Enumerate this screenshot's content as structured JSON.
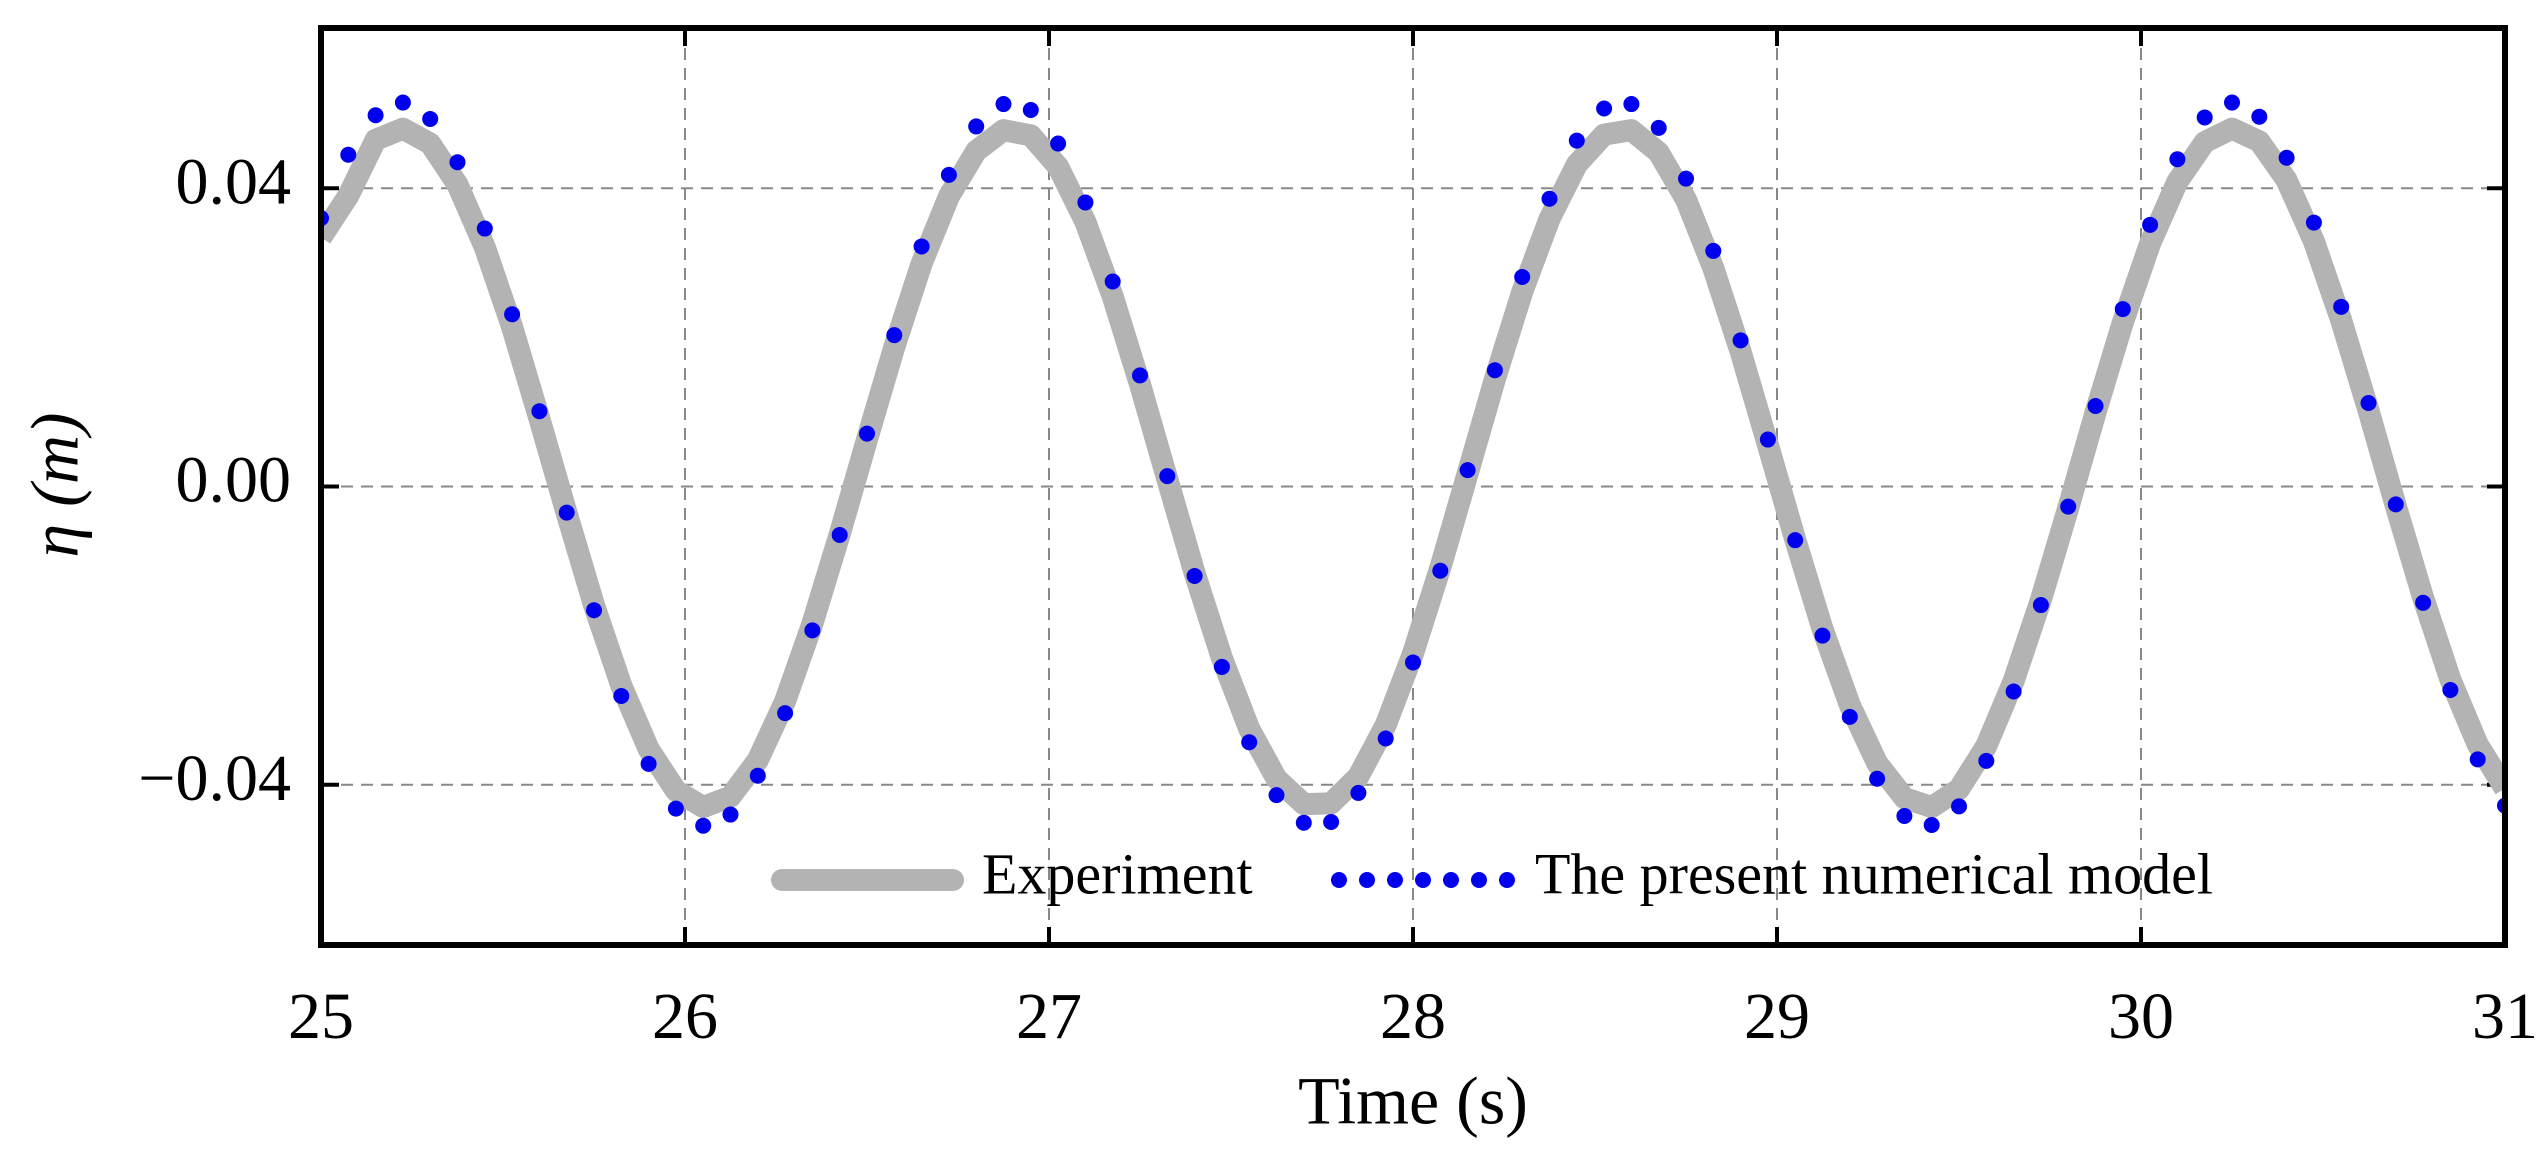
{
  "chart_data": {
    "type": "line",
    "xlabel": "Time (s)",
    "ylabel": "η (m)",
    "x": [
      25,
      25.075,
      25.15,
      25.225,
      25.3,
      25.375,
      25.45,
      25.525,
      25.6,
      25.675,
      25.75,
      25.825,
      25.9,
      25.975,
      26.05,
      26.125,
      26.2,
      26.275,
      26.35,
      26.425,
      26.5,
      26.575,
      26.65,
      26.725,
      26.8,
      26.875,
      26.95,
      27.025,
      27.1,
      27.175,
      27.25,
      27.325,
      27.4,
      27.475,
      27.55,
      27.625,
      27.7,
      27.775,
      27.85,
      27.925,
      28,
      28.075,
      28.15,
      28.225,
      28.3,
      28.375,
      28.45,
      28.525,
      28.6,
      28.675,
      28.75,
      28.825,
      28.9,
      28.975,
      29.05,
      29.125,
      29.2,
      29.275,
      29.35,
      29.425,
      29.5,
      29.575,
      29.65,
      29.725,
      29.8,
      29.875,
      29.95,
      30.025,
      30.1,
      30.175,
      30.25,
      30.325,
      30.4,
      30.475,
      30.55,
      30.625,
      30.7,
      30.775,
      30.85,
      30.925,
      31
    ],
    "series": [
      {
        "name": "Experiment",
        "color": "#b3b3b3",
        "style": "line",
        "values": [
          0.0334,
          0.039,
          0.0465,
          0.048,
          0.046,
          0.0405,
          0.0321,
          0.0214,
          0.0091,
          -0.0036,
          -0.0159,
          -0.0267,
          -0.0352,
          -0.0408,
          -0.043,
          -0.0416,
          -0.0367,
          -0.0288,
          -0.0184,
          -0.0064,
          0.0063,
          0.0187,
          0.0299,
          0.0389,
          0.045,
          0.0478,
          0.0471,
          0.0429,
          0.0355,
          0.0255,
          0.0137,
          0.001,
          -0.0116,
          -0.023,
          -0.0325,
          -0.0392,
          -0.0426,
          -0.0425,
          -0.0389,
          -0.032,
          -0.0224,
          -0.0109,
          0.0017,
          0.0144,
          0.0261,
          0.0359,
          0.0432,
          0.0472,
          0.0478,
          0.0448,
          0.0385,
          0.0293,
          0.0181,
          0.0056,
          -0.0071,
          -0.0191,
          -0.0293,
          -0.0371,
          -0.0418,
          -0.043,
          -0.0406,
          -0.0348,
          -0.0261,
          -0.0152,
          -0.0029,
          0.0099,
          0.022,
          0.0326,
          0.0409,
          0.0462,
          0.048,
          0.0463,
          0.0411,
          0.0329,
          0.0223,
          0.0102,
          -0.0026,
          -0.0149,
          -0.0259,
          -0.0346,
          -0.0405
        ]
      },
      {
        "name": "The present numerical model",
        "color": "#0000ee",
        "style": "dots",
        "values": [
          0.036,
          0.0445,
          0.0498,
          0.0515,
          0.0493,
          0.0435,
          0.0346,
          0.0231,
          0.0101,
          -0.0035,
          -0.0166,
          -0.0281,
          -0.0372,
          -0.0432,
          -0.0455,
          -0.044,
          -0.0388,
          -0.0304,
          -0.0193,
          -0.0065,
          0.0071,
          0.0203,
          0.0322,
          0.0418,
          0.0483,
          0.0513,
          0.0505,
          0.046,
          0.0381,
          0.0275,
          0.0149,
          0.0014,
          -0.012,
          -0.0242,
          -0.0343,
          -0.0414,
          -0.0451,
          -0.045,
          -0.0411,
          -0.0338,
          -0.0236,
          -0.0113,
          0.0022,
          0.0156,
          0.0281,
          0.0386,
          0.0464,
          0.0507,
          0.0513,
          0.0481,
          0.0413,
          0.0316,
          0.0196,
          0.0063,
          -0.0072,
          -0.02,
          -0.0309,
          -0.0392,
          -0.0442,
          -0.0454,
          -0.0429,
          -0.0368,
          -0.0275,
          -0.0159,
          -0.0027,
          0.0108,
          0.0238,
          0.0351,
          0.0439,
          0.0495,
          0.0515,
          0.0496,
          0.0441,
          0.0354,
          0.0241,
          0.0112,
          -0.0024,
          -0.0156,
          -0.0273,
          -0.0366,
          -0.0428
        ]
      }
    ],
    "xlim": [
      25,
      31
    ],
    "xticks": [
      25,
      26,
      27,
      28,
      29,
      30,
      31
    ],
    "ylim": [
      -0.0615,
      0.0615
    ],
    "yticks": [
      {
        "value": -0.04,
        "label": "−0.04"
      },
      {
        "value": 0,
        "label": "0.00"
      },
      0.04
    ],
    "grid": true,
    "legend": "lower center"
  }
}
